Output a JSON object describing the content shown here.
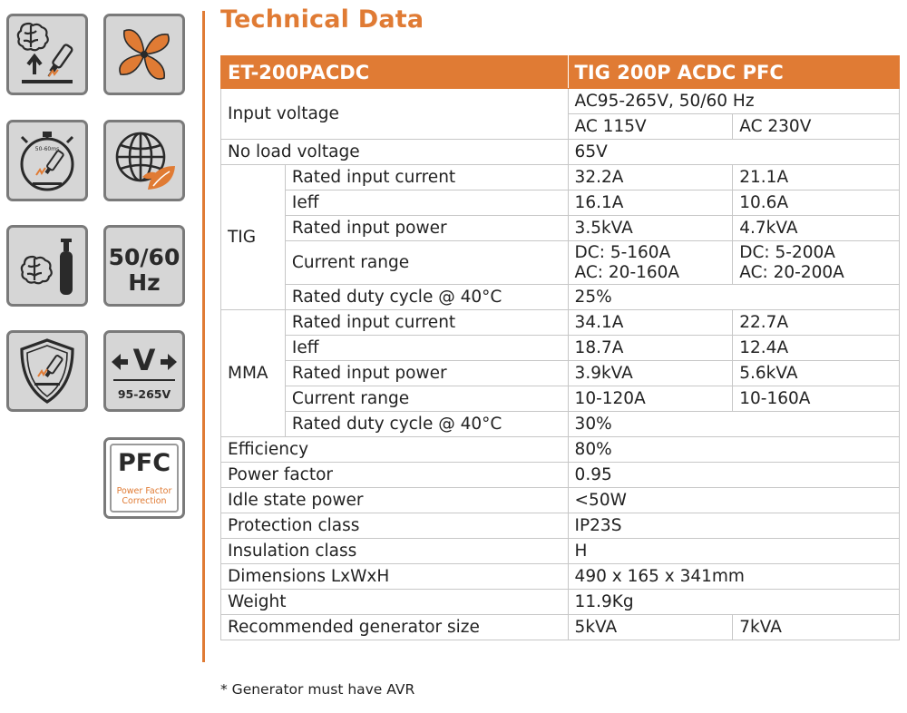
{
  "title": "Technical Data",
  "icons": {
    "hz_text": "50/60",
    "hz_unit": "Hz",
    "volt_letter": "V",
    "volt_range": "95-265V",
    "pfc_text": "PFC",
    "pfc_line1": "Power Factor",
    "pfc_line2": "Correction",
    "timer_label": "50-60ms",
    "accent_color": "#e07b34",
    "tile_color": "#d6d6d6"
  },
  "table": {
    "header_left": "ET-200PACDC",
    "header_right": "TIG 200P ACDC PFC",
    "input_voltage_label": "Input voltage",
    "input_voltage_range": "AC95-265V, 50/60 Hz",
    "input_voltage_115": "AC 115V",
    "input_voltage_230": "AC 230V",
    "no_load_label": "No load voltage",
    "no_load_value": "65V",
    "tig": {
      "group": "TIG",
      "rows": [
        {
          "label": "Rated input current",
          "v115": "32.2A",
          "v230": "21.1A"
        },
        {
          "label": "Ieff",
          "v115": "16.1A",
          "v230": "10.6A"
        },
        {
          "label": "Rated input power",
          "v115": "3.5kVA",
          "v230": "4.7kVA"
        },
        {
          "label": "Current range",
          "v115": "DC: 5-160A",
          "v115b": "AC: 20-160A",
          "v230": "DC: 5-200A",
          "v230b": "AC: 20-200A"
        },
        {
          "label": "Rated duty cycle @ 40°C",
          "value": "25%"
        }
      ]
    },
    "mma": {
      "group": "MMA",
      "rows": [
        {
          "label": "Rated input current",
          "v115": "34.1A",
          "v230": "22.7A"
        },
        {
          "label": "Ieff",
          "v115": "18.7A",
          "v230": "12.4A"
        },
        {
          "label": "Rated input power",
          "v115": "3.9kVA",
          "v230": "5.6kVA"
        },
        {
          "label": "Current range",
          "v115": "10-120A",
          "v230": "10-160A"
        },
        {
          "label": "Rated duty cycle @ 40°C",
          "value": "30%"
        }
      ]
    },
    "general": [
      {
        "label": "Efficiency",
        "value": "80%"
      },
      {
        "label": "Power factor",
        "value": "0.95"
      },
      {
        "label": "Idle state power",
        "value": "<50W"
      },
      {
        "label": "Protection class",
        "value": "IP23S"
      },
      {
        "label": "Insulation class",
        "value": "H"
      },
      {
        "label": "Dimensions LxWxH",
        "value": "490 x 165 x 341mm"
      },
      {
        "label": "Weight",
        "value": "11.9Kg"
      }
    ],
    "generator_label": "Recommended generator size",
    "generator_115": "5kVA",
    "generator_230": "7kVA"
  },
  "footnote": "* Generator must have AVR"
}
